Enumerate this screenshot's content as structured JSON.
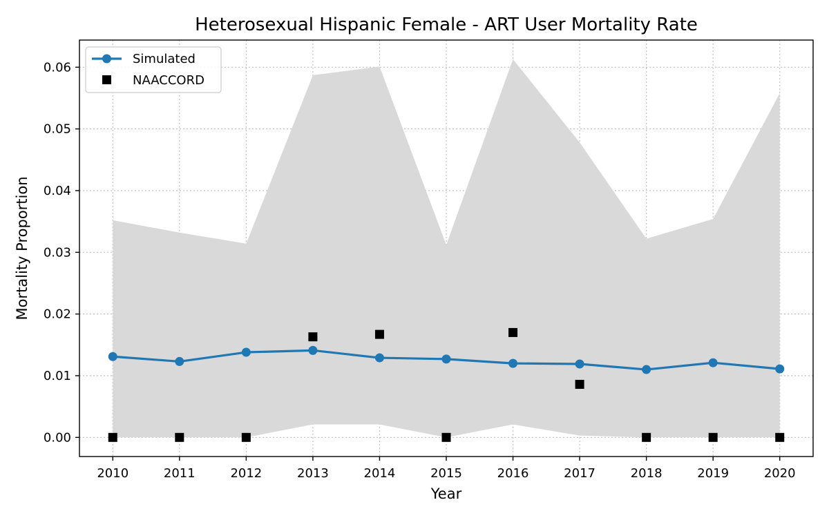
{
  "chart_data": {
    "type": "line",
    "title": "Heterosexual Hispanic Female - ART User Mortality Rate",
    "xlabel": "Year",
    "ylabel": "Mortality Proportion",
    "x": [
      2010,
      2011,
      2012,
      2013,
      2014,
      2015,
      2016,
      2017,
      2018,
      2019,
      2020
    ],
    "xlim": [
      2009.5,
      2020.5
    ],
    "ylim": [
      -0.0031,
      0.0644
    ],
    "yticks": [
      0.0,
      0.01,
      0.02,
      0.03,
      0.04,
      0.05,
      0.06
    ],
    "ytick_labels": [
      "0.00",
      "0.01",
      "0.02",
      "0.03",
      "0.04",
      "0.05",
      "0.06"
    ],
    "grid": true,
    "legend_position": "top-left",
    "series": [
      {
        "name": "Simulated",
        "kind": "line-marker",
        "color": "#1f77b4",
        "values": [
          0.0131,
          0.0123,
          0.0138,
          0.0141,
          0.0129,
          0.0127,
          0.012,
          0.0119,
          0.011,
          0.0121,
          0.0111
        ]
      },
      {
        "name": "NAACCORD",
        "kind": "square-marker",
        "color": "#000000",
        "values": [
          0.0,
          0.0,
          0.0,
          0.0163,
          0.0167,
          0.0,
          0.017,
          0.0086,
          0.0,
          0.0,
          0.0
        ]
      }
    ],
    "band": {
      "color": "#d9d9d9",
      "lower": [
        0.0,
        0.0,
        0.0,
        0.0021,
        0.0021,
        0.0,
        0.0021,
        0.0003,
        0.0,
        0.0,
        0.0
      ],
      "upper": [
        0.0352,
        0.0332,
        0.0314,
        0.0587,
        0.0601,
        0.0312,
        0.0613,
        0.0478,
        0.0322,
        0.0354,
        0.0558
      ]
    }
  }
}
